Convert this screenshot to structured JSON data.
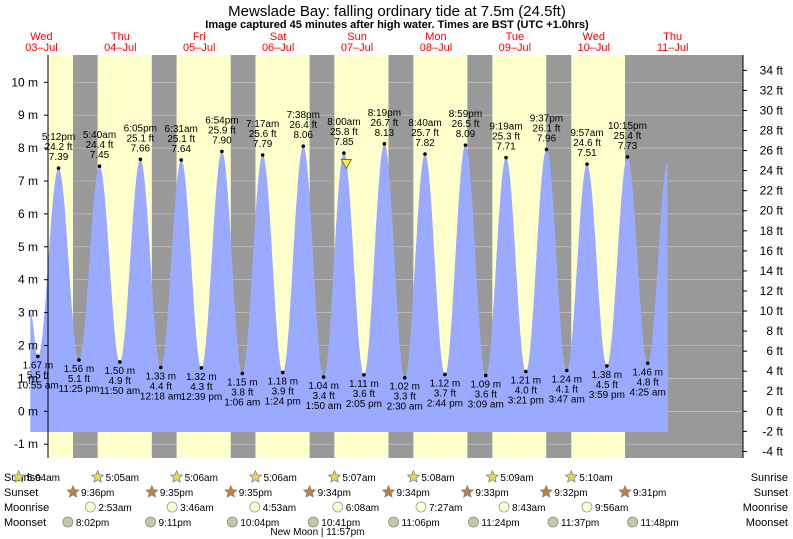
{
  "header": {
    "title": "Mewslade Bay: falling  ordinary tide at 7.5m (24.5ft)",
    "subtitle": "Image captured 45 minutes after high water. Times are BST (UTC +1.0hrs)"
  },
  "colors": {
    "night": "#999999",
    "day": "#ffffcc",
    "tide": "#99aaff",
    "day_label": "#ff0000",
    "marker": "#ffee44"
  },
  "chart_data": {
    "type": "area",
    "title": "Mewslade Bay: falling  ordinary tide at 7.5m (24.5ft)",
    "y_left_unit": "m",
    "y_right_unit": "ft",
    "ylim_m": [
      -1.5,
      10.6
    ],
    "left_ticks": [
      "-1 m",
      "0 m",
      "1 m",
      "2 m",
      "3 m",
      "4 m",
      "5 m",
      "6 m",
      "7 m",
      "8 m",
      "9 m",
      "10 m"
    ],
    "right_ticks": [
      "-4 ft",
      "-2 ft",
      "0 ft",
      "2 ft",
      "4 ft",
      "6 ft",
      "8 ft",
      "10 ft",
      "12 ft",
      "14 ft",
      "16 ft",
      "18 ft",
      "20 ft",
      "22 ft",
      "24 ft",
      "26 ft",
      "28 ft",
      "30 ft",
      "32 ft",
      "34 ft"
    ],
    "x_start": "2024-07-03 00:00 BST",
    "days": [
      {
        "day": "Wed",
        "date": "03–Jul"
      },
      {
        "day": "Thu",
        "date": "04–Jul"
      },
      {
        "day": "Fri",
        "date": "05–Jul"
      },
      {
        "day": "Sat",
        "date": "06–Jul"
      },
      {
        "day": "Sun",
        "date": "07–Jul"
      },
      {
        "day": "Mon",
        "date": "08–Jul"
      },
      {
        "day": "Tue",
        "date": "09–Jul"
      },
      {
        "day": "Wed",
        "date": "10–Jul"
      },
      {
        "day": "Thu",
        "date": "11–Jul"
      }
    ],
    "sun": [
      {
        "sunrise": "5:04am",
        "sunset": "9:36pm"
      },
      {
        "sunrise": "5:05am",
        "sunset": "9:35pm"
      },
      {
        "sunrise": "5:06am",
        "sunset": "9:35pm"
      },
      {
        "sunrise": "5:06am",
        "sunset": "9:34pm"
      },
      {
        "sunrise": "5:07am",
        "sunset": "9:34pm"
      },
      {
        "sunrise": "5:08am",
        "sunset": "9:33pm"
      },
      {
        "sunrise": "5:09am",
        "sunset": "9:32pm"
      },
      {
        "sunrise": "5:10am",
        "sunset": "9:31pm"
      }
    ],
    "high_tides": [
      {
        "time": "5:12pm",
        "ft": "24.2 ft",
        "m": "7.39",
        "value": 7.39
      },
      {
        "time": "5:40am",
        "ft": "24.4 ft",
        "m": "7.45",
        "value": 7.45
      },
      {
        "time": "6:05pm",
        "ft": "25.1 ft",
        "m": "7.66",
        "value": 7.66
      },
      {
        "time": "6:31am",
        "ft": "25.1 ft",
        "m": "7.64",
        "value": 7.64
      },
      {
        "time": "6:54pm",
        "ft": "25.9 ft",
        "m": "7.90",
        "value": 7.9
      },
      {
        "time": "7:17am",
        "ft": "25.6 ft",
        "m": "7.79",
        "value": 7.79
      },
      {
        "time": "7:38pm",
        "ft": "26.4 ft",
        "m": "8.06",
        "value": 8.06
      },
      {
        "time": "8:00am",
        "ft": "25.8 ft",
        "m": "7.85",
        "value": 7.85
      },
      {
        "time": "8:19pm",
        "ft": "26.7 ft",
        "m": "8.13",
        "value": 8.13
      },
      {
        "time": "8:40am",
        "ft": "25.7 ft",
        "m": "7.82",
        "value": 7.82
      },
      {
        "time": "8:59pm",
        "ft": "26.5 ft",
        "m": "8.09",
        "value": 8.09
      },
      {
        "time": "9:19am",
        "ft": "25.3 ft",
        "m": "7.71",
        "value": 7.71
      },
      {
        "time": "9:37pm",
        "ft": "26.1 ft",
        "m": "7.96",
        "value": 7.96
      },
      {
        "time": "9:57am",
        "ft": "24.6 ft",
        "m": "7.51",
        "value": 7.51
      },
      {
        "time": "10:15pm",
        "ft": "25.4 ft",
        "m": "7.73",
        "value": 7.73
      }
    ],
    "low_tides": [
      {
        "m": "1.67 m",
        "ft": "5.5 ft",
        "time": "10:55 am",
        "value": 1.67
      },
      {
        "m": "1.56 m",
        "ft": "5.1 ft",
        "time": "11:25 pm",
        "value": 1.56
      },
      {
        "m": "1.50 m",
        "ft": "4.9 ft",
        "time": "11:50 am",
        "value": 1.5
      },
      {
        "m": "1.33 m",
        "ft": "4.4 ft",
        "time": "12:18 am",
        "value": 1.33
      },
      {
        "m": "1.32 m",
        "ft": "4.3 ft",
        "time": "12:39 pm",
        "value": 1.32
      },
      {
        "m": "1.15 m",
        "ft": "3.8 ft",
        "time": "1:06 am",
        "value": 1.15
      },
      {
        "m": "1.18 m",
        "ft": "3.9 ft",
        "time": "1:24 pm",
        "value": 1.18
      },
      {
        "m": "1.04 m",
        "ft": "3.4 ft",
        "time": "1:50 am",
        "value": 1.04
      },
      {
        "m": "1.11 m",
        "ft": "3.6 ft",
        "time": "2:05 pm",
        "value": 1.11
      },
      {
        "m": "1.02 m",
        "ft": "3.3 ft",
        "time": "2:30 am",
        "value": 1.02
      },
      {
        "m": "1.12 m",
        "ft": "3.7 ft",
        "time": "2:44 pm",
        "value": 1.12
      },
      {
        "m": "1.09 m",
        "ft": "3.6 ft",
        "time": "3:09 am",
        "value": 1.09
      },
      {
        "m": "1.21 m",
        "ft": "4.0 ft",
        "time": "3:21 pm",
        "value": 1.21
      },
      {
        "m": "1.24 m",
        "ft": "4.1 ft",
        "time": "3:47 am",
        "value": 1.24
      },
      {
        "m": "1.38 m",
        "ft": "4.5 ft",
        "time": "3:59 pm",
        "value": 1.38
      },
      {
        "m": "1.46 m",
        "ft": "4.8 ft",
        "time": "4:25 am",
        "value": 1.46
      }
    ],
    "current_marker": {
      "time": "Sun 07-Jul 8:45am",
      "value": 7.5
    },
    "moon": {
      "moonrise": [
        "2:53am",
        "3:46am",
        "4:53am",
        "6:08am",
        "7:27am",
        "8:43am",
        "9:56am"
      ],
      "moonset": [
        "8:02pm",
        "9:11pm",
        "10:04pm",
        "10:41pm",
        "11:06pm",
        "11:24pm",
        "11:37pm",
        "11:48pm"
      ],
      "new_moon": "New Moon | 11:57pm"
    }
  },
  "rows": {
    "sunrise": "Sunrise",
    "sunset": "Sunset",
    "moonrise": "Moonrise",
    "moonset": "Moonset"
  }
}
